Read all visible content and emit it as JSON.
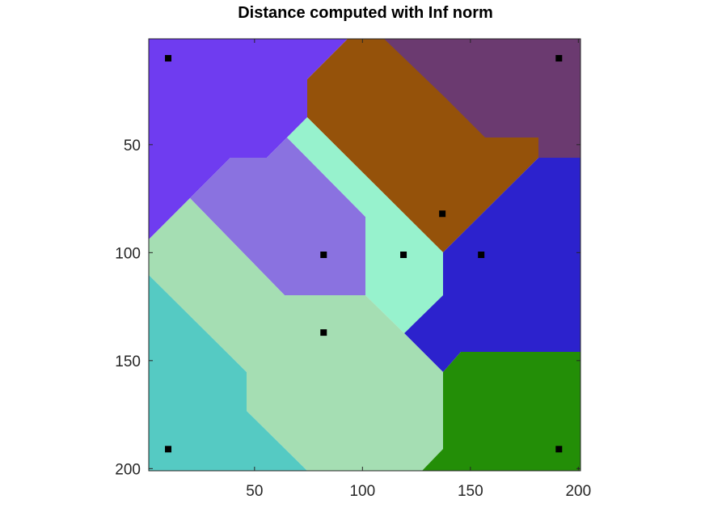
{
  "chart_data": {
    "type": "heatmap",
    "title": "Distance computed with Inf norm",
    "xlabel": "",
    "ylabel": "",
    "xlim": [
      1,
      201
    ],
    "ylim": [
      201,
      1
    ],
    "y_reversed": true,
    "x_ticks": [
      50,
      100,
      150,
      200
    ],
    "y_ticks": [
      50,
      100,
      150,
      200
    ],
    "grid": false,
    "legend": "none",
    "colors": {
      "region_top_left": "#6f3cf0",
      "region_top_center": "#95520a",
      "region_top_right": "#6b3a70",
      "region_mid_left": "#8a72e0",
      "region_mid_center": "#97f2cd",
      "region_mid_right": "#2c22cd",
      "region_lower_center": "#a5deb3",
      "region_bottom_left": "#55cac3",
      "region_bottom_right": "#238e07",
      "seed_marker": "#000000"
    },
    "seeds": [
      {
        "x": 10,
        "y": 10
      },
      {
        "x": 191,
        "y": 10
      },
      {
        "x": 137,
        "y": 82
      },
      {
        "x": 82,
        "y": 101
      },
      {
        "x": 119,
        "y": 101
      },
      {
        "x": 155,
        "y": 101
      },
      {
        "x": 82,
        "y": 137
      },
      {
        "x": 10,
        "y": 191
      },
      {
        "x": 191,
        "y": 191
      }
    ]
  }
}
